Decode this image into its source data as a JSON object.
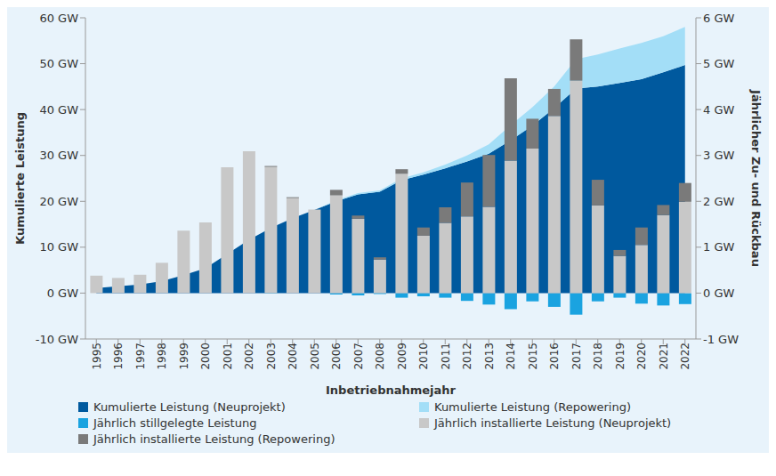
{
  "chart_data": {
    "type": "combo",
    "x_label": "Inbetriebnahmejahr",
    "y_label": "Kumulierte Leistung",
    "y2_label": "Jährlicher Zu- und Rückbau",
    "categories": [
      "1995",
      "1996",
      "1997",
      "1998",
      "1999",
      "2000",
      "2001",
      "2002",
      "2003",
      "2004",
      "2005",
      "2006",
      "2007",
      "2008",
      "2009",
      "2010",
      "2011",
      "2012",
      "2013",
      "2014",
      "2015",
      "2016",
      "2017",
      "2018",
      "2019",
      "2020",
      "2021",
      "2022"
    ],
    "ylim": [
      -10,
      60
    ],
    "yticks": [
      {
        "value": -10,
        "label": "-10 GW"
      },
      {
        "value": 0,
        "label": "0 GW"
      },
      {
        "value": 10,
        "label": "10 GW"
      },
      {
        "value": 20,
        "label": "20 GW"
      },
      {
        "value": 30,
        "label": "30 GW"
      },
      {
        "value": 40,
        "label": "40 GW"
      },
      {
        "value": 50,
        "label": "50 GW"
      },
      {
        "value": 60,
        "label": "60 GW"
      }
    ],
    "y2lim": [
      -1,
      6
    ],
    "y2ticks": [
      {
        "value": -1,
        "label": "-1 GW"
      },
      {
        "value": 0,
        "label": "0 GW"
      },
      {
        "value": 1,
        "label": "1 GW"
      },
      {
        "value": 2,
        "label": "2 GW"
      },
      {
        "value": 3,
        "label": "3 GW"
      },
      {
        "value": 4,
        "label": "4 GW"
      },
      {
        "value": 5,
        "label": "5 GW"
      },
      {
        "value": 6,
        "label": "6 GW"
      }
    ],
    "grid": false,
    "stacked": true,
    "legend": "bottom",
    "series": [
      {
        "name": "Kumulierte Leistung (Neuprojekt)",
        "type": "area",
        "axis": "y",
        "color": "#00599e",
        "values": [
          1.1,
          1.5,
          1.9,
          2.6,
          3.9,
          5.4,
          8.5,
          11.6,
          14.2,
          16.3,
          18.1,
          20.0,
          21.5,
          22.1,
          24.6,
          25.8,
          27.2,
          28.7,
          30.4,
          33.3,
          36.5,
          40.3,
          44.6,
          45.0,
          45.8,
          46.6,
          48.1,
          49.7
        ]
      },
      {
        "name": "Kumulierte Leistung (Repowering)",
        "type": "area",
        "axis": "y",
        "color": "#a3def7",
        "values": [
          0,
          0,
          0,
          0,
          0,
          0,
          0,
          0,
          0,
          0,
          0,
          0.2,
          0.3,
          0.3,
          0.4,
          0.5,
          0.8,
          1.3,
          2.0,
          3.3,
          4.0,
          4.7,
          6.4,
          7.0,
          7.5,
          7.9,
          7.9,
          8.3
        ]
      },
      {
        "name": "Jährlich stillgelegte Leistung",
        "type": "bar",
        "axis": "y2",
        "color": "#1aa3e0",
        "values": [
          0,
          0,
          0,
          0,
          0,
          0,
          0,
          0,
          -0.01,
          0,
          0,
          -0.03,
          -0.05,
          -0.02,
          -0.1,
          -0.07,
          -0.1,
          -0.17,
          -0.25,
          -0.35,
          -0.18,
          -0.3,
          -0.47,
          -0.18,
          -0.1,
          -0.23,
          -0.27,
          -0.24
        ]
      },
      {
        "name": "Jährlich installierte Leistung (Neuprojekt)",
        "type": "bar",
        "axis": "y2",
        "color": "#c8c8c8",
        "values": [
          0.38,
          0.33,
          0.4,
          0.66,
          1.36,
          1.54,
          2.74,
          3.09,
          2.75,
          2.07,
          1.82,
          2.13,
          1.62,
          0.73,
          2.6,
          1.25,
          1.53,
          1.67,
          1.88,
          2.89,
          3.15,
          3.86,
          4.63,
          1.91,
          0.81,
          1.05,
          1.7,
          1.99
        ]
      },
      {
        "name": "Jährlich installierte Leistung (Repowering)",
        "type": "bar",
        "axis": "y2",
        "color": "#7a7a7a",
        "values": [
          0,
          0,
          0,
          0,
          0,
          0,
          0,
          0,
          0.02,
          0.02,
          0,
          0.12,
          0.07,
          0.05,
          0.1,
          0.18,
          0.34,
          0.74,
          1.13,
          1.79,
          0.65,
          0.59,
          0.9,
          0.56,
          0.13,
          0.38,
          0.22,
          0.41
        ]
      }
    ]
  }
}
